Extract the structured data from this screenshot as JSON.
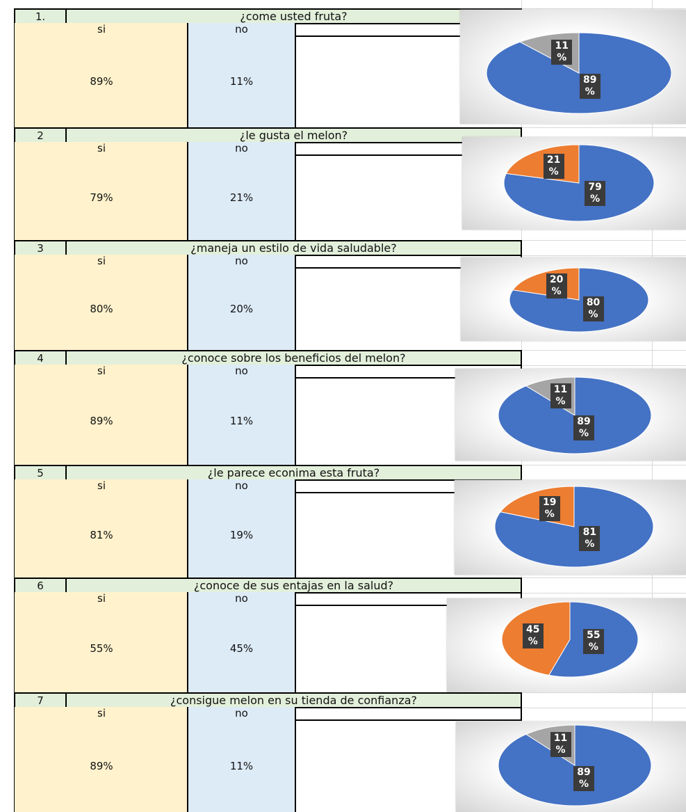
{
  "blocks": [
    {
      "number": "1.",
      "question": "¿come usted fruta?",
      "columns": [
        "si",
        "no"
      ],
      "cells": [
        "89%",
        "11%"
      ]
    },
    {
      "number": "2",
      "question": "¿le gusta el melon?",
      "columns": [
        "si",
        "no"
      ],
      "cells": [
        "79%",
        "21%"
      ]
    },
    {
      "number": "3",
      "question": "¿maneja un estilo de vida saludable?",
      "columns": [
        "si",
        "no"
      ],
      "cells": [
        "80%",
        "20%"
      ]
    },
    {
      "number": "4",
      "question": "¿conoce sobre los beneficios del melon?",
      "columns": [
        "si",
        "no"
      ],
      "cells": [
        "89%",
        "11%"
      ]
    },
    {
      "number": "5",
      "question": "¿le parece econima esta fruta?",
      "columns": [
        "si",
        "no"
      ],
      "cells": [
        "81%",
        "19%"
      ]
    },
    {
      "number": "6",
      "question": "¿conoce de sus entajas en la salud?",
      "columns": [
        "si",
        "no"
      ],
      "cells": [
        "55%",
        "45%"
      ]
    },
    {
      "number": "7",
      "question": "¿consigue melon en su tienda de confianza?",
      "columns": [
        "si",
        "no"
      ],
      "cells": [
        "89%",
        "11%"
      ]
    }
  ],
  "chart_data": [
    {
      "type": "pie",
      "values": [
        89,
        11
      ],
      "value_labels": [
        "89 %",
        "11 %"
      ],
      "colors": [
        "#4472c4",
        "#a5a5a5"
      ]
    },
    {
      "type": "pie",
      "values": [
        79,
        21
      ],
      "value_labels": [
        "79 %",
        "21 %"
      ],
      "colors": [
        "#4472c4",
        "#ed7d31"
      ]
    },
    {
      "type": "pie",
      "values": [
        80,
        20
      ],
      "value_labels": [
        "80 %",
        "20 %"
      ],
      "colors": [
        "#4472c4",
        "#ed7d31"
      ]
    },
    {
      "type": "pie",
      "values": [
        89,
        11
      ],
      "value_labels": [
        "89 %",
        "11 %"
      ],
      "colors": [
        "#4472c4",
        "#a5a5a5"
      ]
    },
    {
      "type": "pie",
      "values": [
        81,
        19
      ],
      "value_labels": [
        "81 %",
        "19 %"
      ],
      "colors": [
        "#4472c4",
        "#ed7d31"
      ]
    },
    {
      "type": "pie",
      "values": [
        55,
        45
      ],
      "value_labels": [
        "55 %",
        "45 %"
      ],
      "colors": [
        "#4472c4",
        "#ed7d31"
      ]
    },
    {
      "type": "pie",
      "values": [
        89,
        11
      ],
      "value_labels": [
        "89 %",
        "11 %"
      ],
      "colors": [
        "#4472c4",
        "#a5a5a5"
      ]
    }
  ]
}
